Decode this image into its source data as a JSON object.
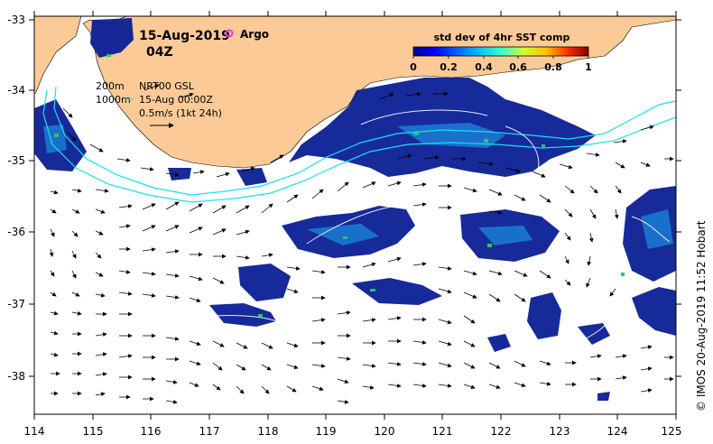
{
  "map": {
    "date": "15-Aug-2019",
    "time": "04Z",
    "argo_label": "Argo",
    "product_title": "std dev of 4hr SST comp",
    "colorbar_ticks": [
      "0",
      "0.2",
      "0.4",
      "0.6",
      "0.8",
      "1"
    ],
    "legend_depth_1": "200m",
    "legend_depth_2": "1000m",
    "legend_product": "NRT00 GSL",
    "legend_time": "15-Aug 00:00Z",
    "legend_scale": "0.5m/s (1kt 24h)",
    "credit": "© IMOS 20-Aug-2019 11:52 Hobart",
    "lon_range": [
      114,
      125
    ],
    "lat_range": [
      -38.5,
      -33
    ],
    "x_ticks": [
      "114",
      "115",
      "116",
      "117",
      "118",
      "119",
      "120",
      "121",
      "122",
      "123",
      "124",
      "125"
    ],
    "y_ticks": [
      "-33",
      "-34",
      "-35",
      "-36",
      "-37",
      "-38"
    ],
    "colors": {
      "land": "#fcca96",
      "sst_low": "#0a1a8c",
      "sst_mid": "#1b6fd8",
      "sst_high": "#2fc46a",
      "isobath": "#19e0ee",
      "argo": "#e633e6"
    }
  }
}
